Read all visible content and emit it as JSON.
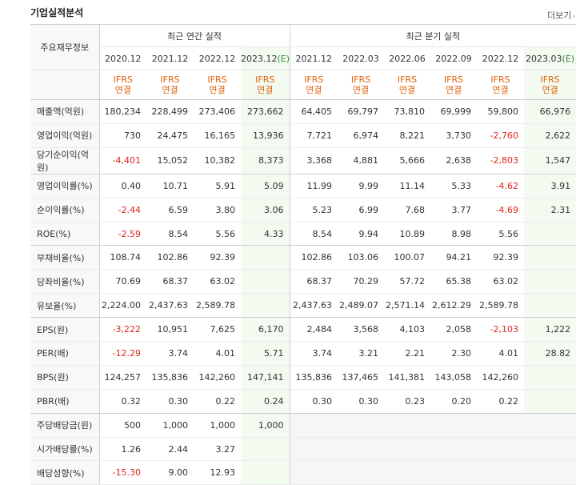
{
  "header": {
    "title": "기업실적분석",
    "more_label": "더보기",
    "more_arrow": "›"
  },
  "table": {
    "row_header_label": "주요재무정보",
    "annual_group": "최근 연간 실적",
    "quarter_group": "최근 분기 실적",
    "basis_top": "IFRS",
    "basis_bottom": "연결",
    "periods": [
      {
        "label": "2020.12",
        "est": ""
      },
      {
        "label": "2021.12",
        "est": ""
      },
      {
        "label": "2022.12",
        "est": ""
      },
      {
        "label": "2023.12",
        "est": "(E)"
      },
      {
        "label": "2021.12",
        "est": ""
      },
      {
        "label": "2022.03",
        "est": ""
      },
      {
        "label": "2022.06",
        "est": ""
      },
      {
        "label": "2022.09",
        "est": ""
      },
      {
        "label": "2022.12",
        "est": ""
      },
      {
        "label": "2023.03",
        "est": "(E)"
      }
    ],
    "rows": [
      {
        "label": "매출액(억원)",
        "values": [
          "180,234",
          "228,499",
          "273,406",
          "273,662",
          "64,405",
          "69,797",
          "73,810",
          "69,999",
          "59,800",
          "66,976"
        ]
      },
      {
        "label": "영업이익(억원)",
        "values": [
          "730",
          "24,475",
          "16,165",
          "13,936",
          "7,721",
          "6,974",
          "8,221",
          "3,730",
          "-2,760",
          "2,622"
        ]
      },
      {
        "label": "당기순이익(억원)",
        "values": [
          "-4,401",
          "15,052",
          "10,382",
          "8,373",
          "3,368",
          "4,881",
          "5,666",
          "2,638",
          "-2,803",
          "1,547"
        ]
      },
      {
        "label": "영업이익률(%)",
        "values": [
          "0.40",
          "10.71",
          "5.91",
          "5.09",
          "11.99",
          "9.99",
          "11.14",
          "5.33",
          "-4.62",
          "3.91"
        ]
      },
      {
        "label": "순이익률(%)",
        "values": [
          "-2.44",
          "6.59",
          "3.80",
          "3.06",
          "5.23",
          "6.99",
          "7.68",
          "3.77",
          "-4.69",
          "2.31"
        ]
      },
      {
        "label": "ROE(%)",
        "values": [
          "-2.59",
          "8.54",
          "5.56",
          "4.33",
          "8.54",
          "9.94",
          "10.89",
          "8.98",
          "5.56",
          ""
        ]
      },
      {
        "label": "부채비율(%)",
        "values": [
          "108.74",
          "102.86",
          "92.39",
          "",
          "102.86",
          "103.06",
          "100.07",
          "94.21",
          "92.39",
          ""
        ]
      },
      {
        "label": "당좌비율(%)",
        "values": [
          "70.69",
          "68.37",
          "63.02",
          "",
          "68.37",
          "70.29",
          "57.72",
          "65.38",
          "63.02",
          ""
        ]
      },
      {
        "label": "유보율(%)",
        "values": [
          "2,224.00",
          "2,437.63",
          "2,589.78",
          "",
          "2,437.63",
          "2,489.07",
          "2,571.14",
          "2,612.29",
          "2,589.78",
          ""
        ]
      },
      {
        "label": "EPS(원)",
        "values": [
          "-3,222",
          "10,951",
          "7,625",
          "6,170",
          "2,484",
          "3,568",
          "4,103",
          "2,058",
          "-2,103",
          "1,222"
        ]
      },
      {
        "label": "PER(배)",
        "values": [
          "-12.29",
          "3.74",
          "4.01",
          "5.71",
          "3.74",
          "3.21",
          "2.21",
          "2.30",
          "4.01",
          "28.82"
        ]
      },
      {
        "label": "BPS(원)",
        "values": [
          "124,257",
          "135,836",
          "142,260",
          "147,141",
          "135,836",
          "137,465",
          "141,381",
          "143,058",
          "142,260",
          ""
        ]
      },
      {
        "label": "PBR(배)",
        "values": [
          "0.32",
          "0.30",
          "0.22",
          "0.24",
          "0.30",
          "0.30",
          "0.23",
          "0.20",
          "0.22",
          ""
        ]
      },
      {
        "label": "주당배당금(원)",
        "values": [
          "500",
          "1,000",
          "1,000",
          "1,000",
          "",
          "",
          "",
          "",
          "",
          ""
        ]
      },
      {
        "label": "시가배당률(%)",
        "values": [
          "1.26",
          "2.44",
          "3.27",
          "",
          "",
          "",
          "",
          "",
          "",
          ""
        ]
      },
      {
        "label": "배당성향(%)",
        "values": [
          "-15.30",
          "9.00",
          "12.93",
          "",
          "",
          "",
          "",
          "",
          "",
          ""
        ]
      }
    ]
  }
}
